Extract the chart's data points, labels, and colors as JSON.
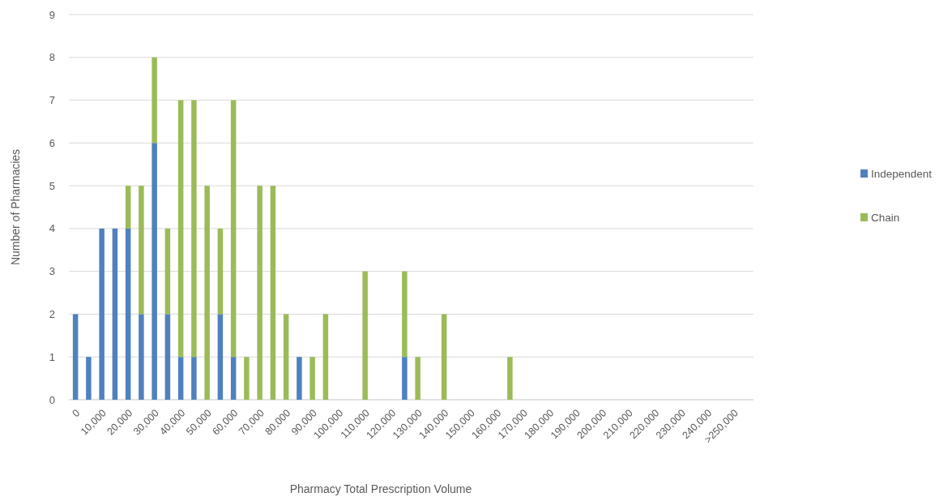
{
  "chart_data": {
    "type": "bar",
    "stacked": true,
    "xlabel": "Pharmacy Total Prescription Volume",
    "ylabel": "Number of Pharmacies",
    "categories": [
      "0",
      null,
      "10,000",
      null,
      "20,000",
      null,
      "30,000",
      null,
      "40,000",
      null,
      "50,000",
      null,
      "60,000",
      null,
      "70,000",
      null,
      "80,000",
      null,
      "90,000",
      null,
      "100,000",
      null,
      "110,000",
      null,
      "120,000",
      null,
      "130,000",
      null,
      "140,000",
      null,
      "150,000",
      null,
      "160,000",
      null,
      "170,000",
      null,
      "180,000",
      null,
      "190,000",
      null,
      "200,000",
      null,
      "210,000",
      null,
      "220,000",
      null,
      "230,000",
      null,
      "240,000",
      null,
      ">250,000",
      null
    ],
    "series": [
      {
        "name": "Independent",
        "color": "#4f81bd",
        "values": [
          2,
          1,
          4,
          4,
          4,
          2,
          6,
          2,
          1,
          1,
          null,
          2,
          1,
          null,
          null,
          null,
          null,
          1,
          null,
          null,
          null,
          null,
          null,
          null,
          null,
          1,
          null,
          null,
          null,
          null,
          null,
          null,
          null,
          null,
          null,
          null,
          null,
          null,
          null,
          null,
          null,
          null,
          null,
          null,
          null,
          null,
          null,
          null,
          null,
          null,
          null,
          null
        ]
      },
      {
        "name": "Chain",
        "color": "#9bbb59",
        "values": [
          null,
          null,
          null,
          null,
          1,
          3,
          2,
          2,
          6,
          6,
          5,
          2,
          6,
          1,
          5,
          5,
          2,
          null,
          1,
          2,
          null,
          null,
          3,
          null,
          null,
          2,
          1,
          null,
          2,
          null,
          null,
          null,
          null,
          1,
          null,
          null,
          null,
          null,
          null,
          null,
          null,
          null,
          null,
          null,
          null,
          null,
          null,
          null,
          null,
          null,
          null,
          null
        ]
      }
    ],
    "ylim": [
      0,
      9
    ],
    "yticks": [
      0,
      1,
      2,
      3,
      4,
      5,
      6,
      7,
      8,
      9
    ],
    "grid": "y",
    "legend": "right"
  }
}
